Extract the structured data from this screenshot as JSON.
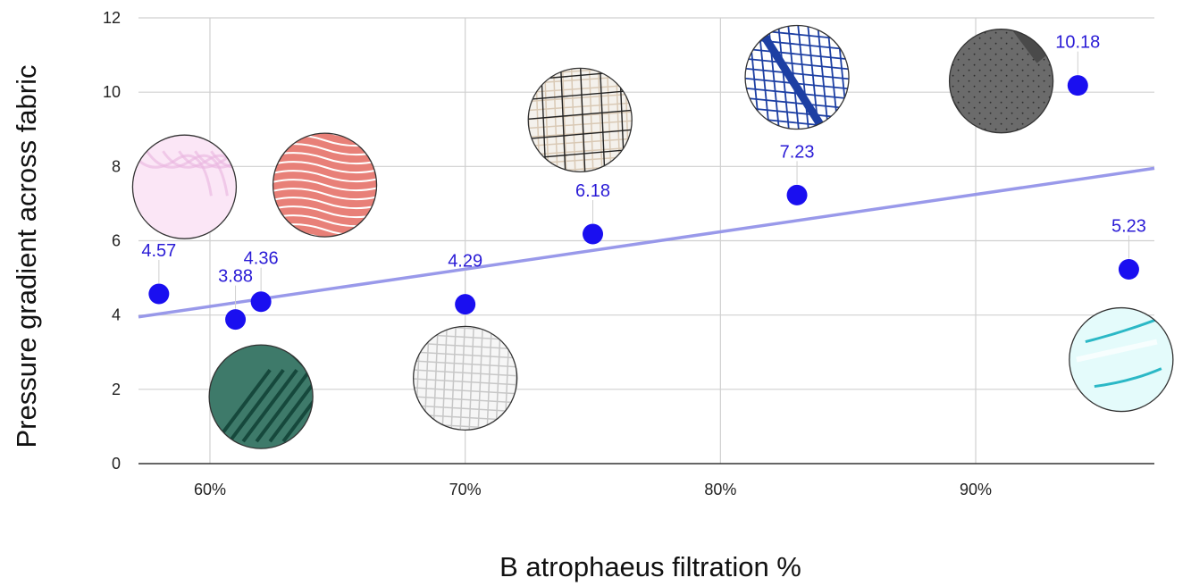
{
  "chart_data": {
    "type": "scatter",
    "xlabel": "B atrophaeus filtration %",
    "ylabel": "Pressure gradient across fabric",
    "x_tick_labels": [
      "60%",
      "70%",
      "80%",
      "90%"
    ],
    "x_ticks": [
      60,
      70,
      80,
      90
    ],
    "y_tick_labels": [
      "0",
      "2",
      "4",
      "6",
      "8",
      "10",
      "12"
    ],
    "y_ticks": [
      0,
      2,
      4,
      6,
      8,
      10,
      12
    ],
    "xlim": [
      57.2,
      97
    ],
    "ylim": [
      0,
      12
    ],
    "grid": true,
    "point_color": "#1a0ff0",
    "label_color": "#2a1bd6",
    "trendline_color": "#8f8fe8",
    "points": [
      {
        "x": 58,
        "y": 4.57,
        "label": "4.57"
      },
      {
        "x": 61,
        "y": 3.88,
        "label": "3.88"
      },
      {
        "x": 62,
        "y": 4.36,
        "label": "4.36"
      },
      {
        "x": 70,
        "y": 4.29,
        "label": "4.29"
      },
      {
        "x": 75,
        "y": 6.18,
        "label": "6.18"
      },
      {
        "x": 83,
        "y": 7.23,
        "label": "7.23"
      },
      {
        "x": 94,
        "y": 10.18,
        "label": "10.18"
      },
      {
        "x": 96,
        "y": 5.23,
        "label": "5.23"
      }
    ],
    "trendline": {
      "x": [
        57.2,
        97
      ],
      "y": [
        3.95,
        7.95
      ]
    },
    "fabric_swatches": [
      {
        "name": "pink-swirl-fabric",
        "cx_data": 59,
        "cy_data": 7.45,
        "colors": [
          "#fbe6f6",
          "#e9b4df"
        ]
      },
      {
        "name": "red-patterned-fabric",
        "cx_data": 64.5,
        "cy_data": 7.5,
        "colors": [
          "#e88078",
          "#ffffff"
        ]
      },
      {
        "name": "teal-feather-fabric",
        "cx_data": 62,
        "cy_data": 1.8,
        "colors": [
          "#3e7a6a",
          "#16483c"
        ]
      },
      {
        "name": "white-weave-fabric",
        "cx_data": 70,
        "cy_data": 2.3,
        "colors": [
          "#f6f6f6",
          "#c7c7c7"
        ]
      },
      {
        "name": "cream-plaid-fabric",
        "cx_data": 74.5,
        "cy_data": 9.25,
        "colors": [
          "#f4f1ec",
          "#222222"
        ]
      },
      {
        "name": "blue-grid-fabric",
        "cx_data": 83,
        "cy_data": 10.4,
        "colors": [
          "#ffffff",
          "#1d3fa3"
        ]
      },
      {
        "name": "gray-dotted-fabric",
        "cx_data": 91,
        "cy_data": 10.3,
        "colors": [
          "#6b6b6b",
          "#4a4a4a"
        ]
      },
      {
        "name": "aqua-stroke-fabric",
        "cx_data": 95.7,
        "cy_data": 2.8,
        "colors": [
          "#e4fbfb",
          "#2bb8c6"
        ]
      }
    ]
  }
}
